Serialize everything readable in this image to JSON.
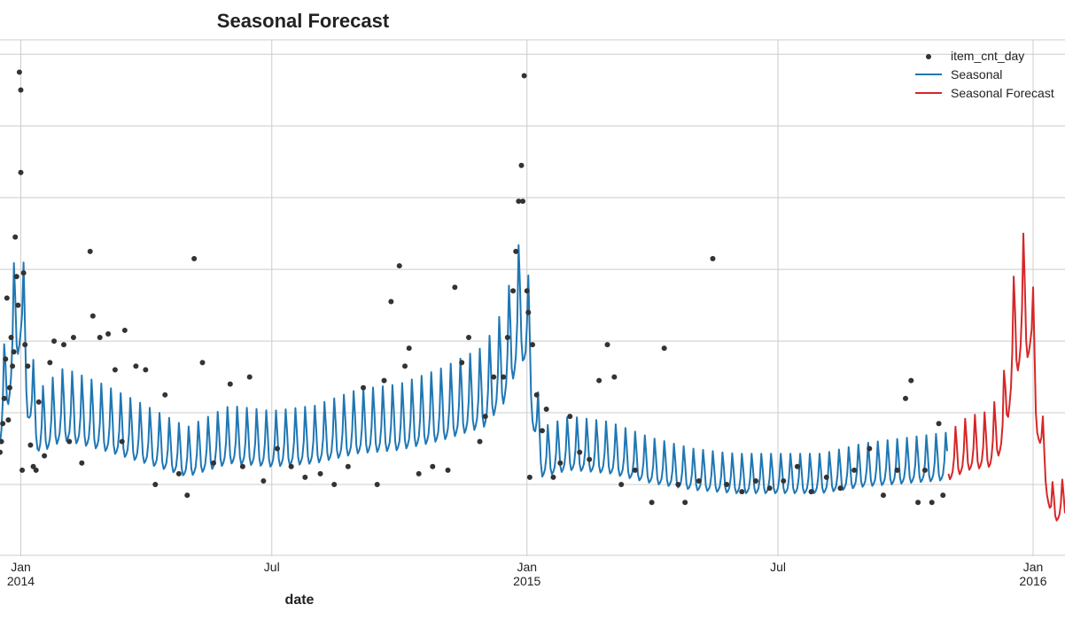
{
  "chart_data": {
    "type": "line",
    "title": "Seasonal Forecast",
    "xlabel": "date",
    "ylabel": "",
    "x_axis_type": "date",
    "xlim": [
      "2013-12-17",
      "2016-01-24"
    ],
    "ylim": [
      0,
      7.2
    ],
    "y_tick_labels_shown": false,
    "grid": true,
    "legend_position": "top-right",
    "x_ticks": [
      {
        "date": "2014-01-01",
        "label": "Jan",
        "sublabel": "2014"
      },
      {
        "date": "2014-07-01",
        "label": "Jul",
        "sublabel": ""
      },
      {
        "date": "2015-01-01",
        "label": "Jan",
        "sublabel": "2015"
      },
      {
        "date": "2015-07-01",
        "label": "Jul",
        "sublabel": ""
      },
      {
        "date": "2016-01-01",
        "label": "Jan",
        "sublabel": "2016"
      }
    ],
    "colors": {
      "item_cnt_day": "#333333",
      "Seasonal": "#1f77b4",
      "Seasonal Forecast": "#d62728"
    },
    "series": [
      {
        "name": "item_cnt_day",
        "kind": "scatter",
        "points": [
          [
            "2013-12-17",
            1.45
          ],
          [
            "2013-12-18",
            1.6
          ],
          [
            "2013-12-19",
            1.85
          ],
          [
            "2013-12-20",
            2.2
          ],
          [
            "2013-12-21",
            2.75
          ],
          [
            "2013-12-22",
            3.6
          ],
          [
            "2013-12-23",
            1.9
          ],
          [
            "2013-12-24",
            2.35
          ],
          [
            "2013-12-25",
            3.05
          ],
          [
            "2013-12-26",
            2.65
          ],
          [
            "2013-12-27",
            2.85
          ],
          [
            "2013-12-28",
            4.45
          ],
          [
            "2013-12-29",
            3.9
          ],
          [
            "2013-12-30",
            3.5
          ],
          [
            "2013-12-31",
            6.75
          ],
          [
            "2014-01-01",
            6.5
          ],
          [
            "2014-01-01",
            5.35
          ],
          [
            "2014-01-02",
            1.2
          ],
          [
            "2014-01-03",
            3.95
          ],
          [
            "2014-01-04",
            2.95
          ],
          [
            "2014-01-06",
            2.65
          ],
          [
            "2014-01-08",
            1.55
          ],
          [
            "2014-01-10",
            1.25
          ],
          [
            "2014-01-12",
            1.2
          ],
          [
            "2014-01-14",
            2.15
          ],
          [
            "2014-01-18",
            1.4
          ],
          [
            "2014-01-22",
            2.7
          ],
          [
            "2014-01-25",
            3.0
          ],
          [
            "2014-02-01",
            2.95
          ],
          [
            "2014-02-05",
            1.6
          ],
          [
            "2014-02-08",
            3.05
          ],
          [
            "2014-02-14",
            1.3
          ],
          [
            "2014-02-20",
            4.25
          ],
          [
            "2014-02-22",
            3.35
          ],
          [
            "2014-02-27",
            3.05
          ],
          [
            "2014-03-05",
            3.1
          ],
          [
            "2014-03-10",
            2.6
          ],
          [
            "2014-03-15",
            1.6
          ],
          [
            "2014-03-17",
            3.15
          ],
          [
            "2014-03-25",
            2.65
          ],
          [
            "2014-04-01",
            2.6
          ],
          [
            "2014-04-08",
            1.0
          ],
          [
            "2014-04-15",
            2.25
          ],
          [
            "2014-04-25",
            1.15
          ],
          [
            "2014-05-01",
            0.85
          ],
          [
            "2014-05-06",
            4.15
          ],
          [
            "2014-05-12",
            2.7
          ],
          [
            "2014-05-20",
            1.3
          ],
          [
            "2014-06-01",
            2.4
          ],
          [
            "2014-06-10",
            1.25
          ],
          [
            "2014-06-15",
            2.5
          ],
          [
            "2014-06-25",
            1.05
          ],
          [
            "2014-07-05",
            1.5
          ],
          [
            "2014-07-15",
            1.25
          ],
          [
            "2014-07-25",
            1.1
          ],
          [
            "2014-08-05",
            1.15
          ],
          [
            "2014-08-15",
            1.0
          ],
          [
            "2014-08-25",
            1.25
          ],
          [
            "2014-09-05",
            2.35
          ],
          [
            "2014-09-15",
            1.0
          ],
          [
            "2014-09-20",
            2.45
          ],
          [
            "2014-09-25",
            3.55
          ],
          [
            "2014-10-01",
            4.05
          ],
          [
            "2014-10-05",
            2.65
          ],
          [
            "2014-10-08",
            2.9
          ],
          [
            "2014-10-15",
            1.15
          ],
          [
            "2014-10-25",
            1.25
          ],
          [
            "2014-11-05",
            1.2
          ],
          [
            "2014-11-10",
            3.75
          ],
          [
            "2014-11-15",
            2.7
          ],
          [
            "2014-11-20",
            3.05
          ],
          [
            "2014-11-28",
            1.6
          ],
          [
            "2014-12-02",
            1.95
          ],
          [
            "2014-12-08",
            2.5
          ],
          [
            "2014-12-15",
            2.5
          ],
          [
            "2014-12-18",
            3.05
          ],
          [
            "2014-12-22",
            3.7
          ],
          [
            "2014-12-24",
            4.25
          ],
          [
            "2014-12-26",
            4.95
          ],
          [
            "2014-12-28",
            5.45
          ],
          [
            "2014-12-29",
            4.95
          ],
          [
            "2014-12-30",
            6.7
          ],
          [
            "2015-01-01",
            3.7
          ],
          [
            "2015-01-02",
            3.4
          ],
          [
            "2015-01-03",
            1.1
          ],
          [
            "2015-01-05",
            2.95
          ],
          [
            "2015-01-08",
            2.25
          ],
          [
            "2015-01-12",
            1.75
          ],
          [
            "2015-01-15",
            2.05
          ],
          [
            "2015-01-20",
            1.1
          ],
          [
            "2015-01-25",
            1.3
          ],
          [
            "2015-02-01",
            1.95
          ],
          [
            "2015-02-08",
            1.45
          ],
          [
            "2015-02-15",
            1.35
          ],
          [
            "2015-02-22",
            2.45
          ],
          [
            "2015-02-28",
            2.95
          ],
          [
            "2015-03-05",
            2.5
          ],
          [
            "2015-03-10",
            1.0
          ],
          [
            "2015-03-20",
            1.2
          ],
          [
            "2015-04-01",
            0.75
          ],
          [
            "2015-04-10",
            2.9
          ],
          [
            "2015-04-20",
            1.0
          ],
          [
            "2015-04-25",
            0.75
          ],
          [
            "2015-05-05",
            1.05
          ],
          [
            "2015-05-15",
            4.15
          ],
          [
            "2015-05-25",
            1.0
          ],
          [
            "2015-06-05",
            0.9
          ],
          [
            "2015-06-15",
            1.05
          ],
          [
            "2015-06-25",
            0.95
          ],
          [
            "2015-07-05",
            1.05
          ],
          [
            "2015-07-15",
            1.25
          ],
          [
            "2015-07-25",
            0.9
          ],
          [
            "2015-08-05",
            1.1
          ],
          [
            "2015-08-15",
            0.95
          ],
          [
            "2015-08-25",
            1.2
          ],
          [
            "2015-09-05",
            1.5
          ],
          [
            "2015-09-15",
            0.85
          ],
          [
            "2015-09-25",
            1.2
          ],
          [
            "2015-10-01",
            2.2
          ],
          [
            "2015-10-05",
            2.45
          ],
          [
            "2015-10-10",
            0.75
          ],
          [
            "2015-10-15",
            1.2
          ],
          [
            "2015-10-20",
            0.75
          ],
          [
            "2015-10-25",
            1.85
          ],
          [
            "2015-10-28",
            0.85
          ]
        ]
      },
      {
        "name": "Seasonal",
        "kind": "line",
        "segment_range": [
          "2013-12-17",
          "2015-10-31"
        ],
        "weekly_amplitude": 0.8,
        "anchors": [
          [
            "2013-12-17",
            1.65
          ],
          [
            "2013-12-24",
            2.4
          ],
          [
            "2013-12-30",
            3.05
          ],
          [
            "2014-01-01",
            3.15
          ],
          [
            "2014-01-06",
            2.1
          ],
          [
            "2014-01-14",
            1.55
          ],
          [
            "2014-02-01",
            1.75
          ],
          [
            "2014-03-01",
            1.6
          ],
          [
            "2014-04-01",
            1.4
          ],
          [
            "2014-05-01",
            1.2
          ],
          [
            "2014-06-01",
            1.4
          ],
          [
            "2014-07-01",
            1.35
          ],
          [
            "2014-08-01",
            1.4
          ],
          [
            "2014-09-01",
            1.55
          ],
          [
            "2014-10-01",
            1.6
          ],
          [
            "2014-11-01",
            1.75
          ],
          [
            "2014-12-01",
            1.95
          ],
          [
            "2014-12-15",
            2.3
          ],
          [
            "2014-12-28",
            3.0
          ],
          [
            "2015-01-01",
            2.8
          ],
          [
            "2015-01-06",
            1.85
          ],
          [
            "2015-01-12",
            1.2
          ],
          [
            "2015-02-01",
            1.3
          ],
          [
            "2015-03-01",
            1.25
          ],
          [
            "2015-04-01",
            1.1
          ],
          [
            "2015-05-01",
            1.0
          ],
          [
            "2015-06-01",
            0.95
          ],
          [
            "2015-07-01",
            0.95
          ],
          [
            "2015-08-01",
            0.95
          ],
          [
            "2015-09-01",
            1.05
          ],
          [
            "2015-10-01",
            1.1
          ],
          [
            "2015-10-31",
            1.15
          ]
        ]
      },
      {
        "name": "Seasonal Forecast",
        "kind": "line",
        "segment_range": [
          "2015-11-01",
          "2016-01-24"
        ],
        "weekly_amplitude": 0.8,
        "anchors": [
          [
            "2015-11-01",
            1.15
          ],
          [
            "2015-11-15",
            1.3
          ],
          [
            "2015-12-01",
            1.35
          ],
          [
            "2015-12-10",
            1.6
          ],
          [
            "2015-12-18",
            2.6
          ],
          [
            "2015-12-24",
            3.0
          ],
          [
            "2015-12-30",
            3.0
          ],
          [
            "2016-01-03",
            2.0
          ],
          [
            "2016-01-08",
            1.3
          ],
          [
            "2016-01-14",
            0.55
          ],
          [
            "2016-01-24",
            0.6
          ]
        ]
      }
    ]
  }
}
